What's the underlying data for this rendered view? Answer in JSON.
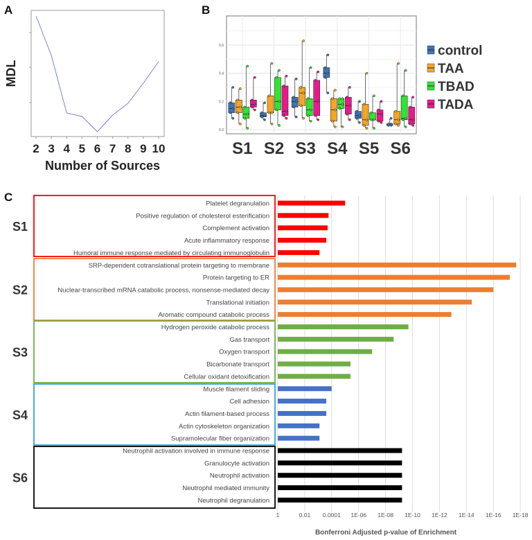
{
  "chart_data": [
    {
      "panel": "A",
      "type": "line",
      "xlabel": "Number of Sources",
      "ylabel": "MDL",
      "x": [
        2,
        3,
        4,
        5,
        6,
        7,
        8,
        9,
        10
      ],
      "values_relative": [
        2.5,
        1.36,
        -0.3,
        -0.4,
        -0.84,
        -0.36,
        -0.02,
        0.56,
        1.18
      ],
      "xticks": [
        "2",
        "3",
        "4",
        "5",
        "6",
        "7",
        "8",
        "9",
        "10"
      ],
      "line_color": "#7b7fd6",
      "grid": false
    },
    {
      "panel": "B",
      "type": "box",
      "categories": [
        "S1",
        "S2",
        "S3",
        "S4",
        "S5",
        "S6"
      ],
      "yticks": [
        "0.0",
        "0.2",
        "0.4",
        "0.6"
      ],
      "ylim": [
        0,
        0.78
      ],
      "grid": true,
      "legend_position": "right",
      "series": [
        {
          "name": "control",
          "color": "#3f74b5",
          "boxes": [
            [
              0.08,
              0.12,
              0.15,
              0.19,
              0.3
            ],
            [
              0.07,
              0.09,
              0.1,
              0.12,
              0.19
            ],
            [
              0.09,
              0.16,
              0.2,
              0.23,
              0.36
            ],
            [
              0.26,
              0.37,
              0.4,
              0.44,
              0.53
            ],
            [
              0.05,
              0.08,
              0.1,
              0.13,
              0.2
            ],
            [
              0.03,
              0.03,
              0.04,
              0.04,
              0.08
            ]
          ]
        },
        {
          "name": "TAA",
          "color": "#f5a623",
          "boxes": [
            [
              0.04,
              0.12,
              0.16,
              0.21,
              0.29
            ],
            [
              0.04,
              0.12,
              0.12,
              0.24,
              0.47
            ],
            [
              0.08,
              0.17,
              0.26,
              0.3,
              0.63
            ],
            [
              0.02,
              0.06,
              0.14,
              0.22,
              0.28
            ],
            [
              0.01,
              0.03,
              0.07,
              0.18,
              0.4
            ],
            [
              0.03,
              0.04,
              0.07,
              0.13,
              0.47
            ]
          ]
        },
        {
          "name": "TBAD",
          "color": "#2ee62e",
          "boxes": [
            [
              0.01,
              0.08,
              0.11,
              0.16,
              0.45
            ],
            [
              0.03,
              0.14,
              0.2,
              0.37,
              0.42
            ],
            [
              0.06,
              0.1,
              0.14,
              0.22,
              0.44
            ],
            [
              0.02,
              0.15,
              0.18,
              0.22,
              0.22
            ],
            [
              0.01,
              0.07,
              0.07,
              0.12,
              0.24
            ],
            [
              0.02,
              0.07,
              0.08,
              0.24,
              0.42
            ]
          ]
        },
        {
          "name": "TADA",
          "color": "#e8198c",
          "boxes": [
            [
              0.14,
              0.16,
              0.18,
              0.21,
              0.37
            ],
            [
              0.08,
              0.1,
              0.13,
              0.31,
              0.38
            ],
            [
              0.07,
              0.1,
              0.2,
              0.35,
              0.41
            ],
            [
              0.07,
              0.11,
              0.17,
              0.23,
              0.3
            ],
            [
              0.05,
              0.06,
              0.11,
              0.14,
              0.2
            ],
            [
              0.03,
              0.04,
              0.07,
              0.16,
              0.23
            ]
          ]
        }
      ]
    },
    {
      "panel": "C",
      "type": "bar",
      "orientation": "horizontal",
      "xscale": "log-reversed",
      "xlabel": "Bonferroni Adjusted p-value of Enrichment",
      "xticks": [
        "1",
        "0.01",
        "0.0001",
        "1E-06",
        "1E-08",
        "1E-10",
        "1E-12",
        "1E-14",
        "1E-16",
        "1E-18"
      ],
      "grid": true,
      "groups": [
        {
          "name": "S1",
          "color": "#ff0000",
          "terms": [
            {
              "label": "Platelet degranulation",
              "p": 1e-05
            },
            {
              "label": "Positive regulation of cholesterol esterification",
              "p": 0.00017
            },
            {
              "label": "Complement activation",
              "p": 0.0002
            },
            {
              "label": "Acute inflammatory response",
              "p": 0.00025
            },
            {
              "label": "Humoral immune response mediated by circulating immunoglobulin",
              "p": 0.0008
            }
          ]
        },
        {
          "name": "S2",
          "color": "#ed7d31",
          "terms": [
            {
              "label": "SRP-dependent cotranslational protein targeting to membrane",
              "p": 2e-18
            },
            {
              "label": "Protein targeting to ER",
              "p": 6e-18
            },
            {
              "label": "Nuclear-transcribed mRNA catabolic process, nonsense-mediated decay",
              "p": 1e-16
            },
            {
              "label": "Translational initiation",
              "p": 4e-15
            },
            {
              "label": "Aromatic compound catabolic process",
              "p": 1.3e-13
            }
          ]
        },
        {
          "name": "S3",
          "color": "#70ad47",
          "terms": [
            {
              "label": "Hydrogen peroxide catabolic process",
              "p": 2e-10
            },
            {
              "label": "Gas transport",
              "p": 2.5e-09
            },
            {
              "label": "Oxygen transport",
              "p": 1e-07
            },
            {
              "label": "Bicarbonate transport",
              "p": 4e-06
            },
            {
              "label": "Cellular oxidant detoxification",
              "p": 4e-06
            }
          ]
        },
        {
          "name": "S4",
          "color": "#4472c4",
          "terms": [
            {
              "label": "Muscle filament sliding",
              "p": 0.0001
            },
            {
              "label": "Cell adhesion",
              "p": 0.00025
            },
            {
              "label": "Actin filament-based process",
              "p": 0.00025
            },
            {
              "label": "Actin cytoskeleton organization",
              "p": 0.0008
            },
            {
              "label": "Supramolecular fiber organization",
              "p": 0.0008
            }
          ]
        },
        {
          "name": "S6",
          "color": "#000000",
          "terms": [
            {
              "label": "Neutrophil activation involved in immune response",
              "p": 6e-10
            },
            {
              "label": "Granulocyte activation",
              "p": 6e-10
            },
            {
              "label": "Neutrophil activation",
              "p": 6e-10
            },
            {
              "label": "Neutrophil mediated immunity",
              "p": 6e-10
            },
            {
              "label": "Neutrophil degranulation",
              "p": 6e-10
            }
          ]
        }
      ]
    }
  ],
  "panels": {
    "a": "A",
    "b": "B",
    "c": "C"
  }
}
